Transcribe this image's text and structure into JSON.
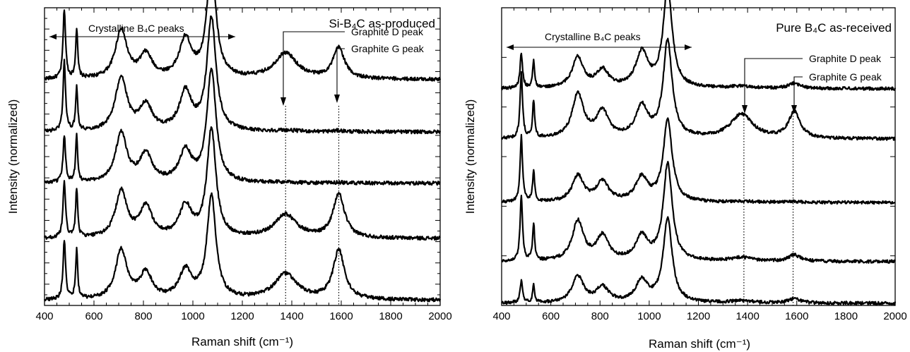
{
  "figure": {
    "panels": [
      {
        "title": "Si-B₄C as-produced",
        "xlabel": "Raman shift (cm⁻¹)",
        "ylabel": "Intensity (normalized)",
        "xticks": [
          "400",
          "600",
          "800",
          "1000",
          "1200",
          "1400",
          "1600",
          "1800",
          "2000"
        ],
        "annotations": {
          "crystalline": "Crystalline B₄C peaks",
          "d_peak": "Graphite D peak",
          "g_peak": "Graphite G peak"
        }
      },
      {
        "title": "Pure B₄C as-received",
        "xlabel": "Raman shift (cm⁻¹)",
        "ylabel": "Intensity (normalized)",
        "xticks": [
          "400",
          "600",
          "800",
          "1000",
          "1200",
          "1400",
          "1600",
          "1800",
          "2000"
        ],
        "annotations": {
          "crystalline": "Crystalline B₄C peaks",
          "d_peak": "Graphite D peak",
          "g_peak": "Graphite G peak"
        }
      }
    ]
  },
  "chart_data": [
    {
      "type": "line",
      "title": "Si-B₄C as-produced",
      "xlabel": "Raman shift (cm⁻¹)",
      "ylabel": "Intensity (normalized)",
      "xlim": [
        400,
        2000
      ],
      "ylim": [
        0,
        5.8
      ],
      "y_tick_labels_shown": false,
      "grid": false,
      "reference_lines_x": [
        1375,
        1590
      ],
      "annotation_arrow_range_x": [
        400,
        1200
      ],
      "series": [
        {
          "offset": 4.4,
          "bands": {
            "b480": 1.35,
            "b530": 0.95,
            "b710": 0.95,
            "b810": 0.45,
            "b970": 0.75,
            "b1075": 2.2,
            "d1375": 0.5,
            "g1590": 0.6
          }
        },
        {
          "offset": 3.38,
          "bands": {
            "b480": 1.35,
            "b530": 0.85,
            "b710": 1.05,
            "b810": 0.5,
            "b970": 0.75,
            "b1075": 2.2,
            "d1375": 0.02,
            "g1590": 0.02
          }
        },
        {
          "offset": 2.38,
          "bands": {
            "b480": 0.9,
            "b530": 0.9,
            "b710": 0.95,
            "b810": 0.55,
            "b970": 0.6,
            "b1075": 2.2,
            "d1375": 0.01,
            "g1590": 0.01
          }
        },
        {
          "offset": 1.3,
          "bands": {
            "b480": 1.1,
            "b530": 0.95,
            "b710": 0.9,
            "b810": 0.6,
            "b970": 0.6,
            "b1075": 2.1,
            "d1375": 0.45,
            "g1590": 0.85
          }
        },
        {
          "offset": 0.1,
          "bands": {
            "b480": 1.15,
            "b530": 0.95,
            "b710": 0.95,
            "b810": 0.5,
            "b970": 0.55,
            "b1075": 2.0,
            "d1375": 0.5,
            "g1590": 0.95
          }
        }
      ]
    },
    {
      "type": "line",
      "title": "Pure B₄C as-received",
      "xlabel": "Raman shift (cm⁻¹)",
      "ylabel": "Intensity (normalized)",
      "xlim": [
        400,
        2000
      ],
      "ylim": [
        0,
        6.8
      ],
      "y_tick_labels_shown": false,
      "grid": false,
      "reference_lines_x": [
        1385,
        1585
      ],
      "annotation_arrow_range_x": [
        400,
        1200
      ],
      "series": [
        {
          "offset": 4.95,
          "bands": {
            "b480": 0.8,
            "b530": 0.6,
            "b710": 0.7,
            "b810": 0.4,
            "b970": 0.8,
            "b1075": 2.3,
            "d1375": 0.05,
            "g1590": 0.12
          }
        },
        {
          "offset": 3.8,
          "bands": {
            "b480": 1.5,
            "b530": 0.85,
            "b710": 1.0,
            "b810": 0.6,
            "b970": 0.7,
            "b1075": 2.2,
            "d1375": 0.55,
            "g1590": 0.6
          }
        },
        {
          "offset": 2.35,
          "bands": {
            "b480": 1.5,
            "b530": 0.7,
            "b710": 0.6,
            "b810": 0.45,
            "b970": 0.55,
            "b1075": 1.85,
            "d1375": 0.02,
            "g1590": 0.02
          }
        },
        {
          "offset": 1.0,
          "bands": {
            "b480": 1.5,
            "b530": 0.85,
            "b710": 0.9,
            "b810": 0.55,
            "b970": 0.55,
            "b1075": 2.2,
            "d1375": 0.08,
            "g1590": 0.15
          }
        },
        {
          "offset": 0.05,
          "bands": {
            "b480": 0.5,
            "b530": 0.4,
            "b710": 0.6,
            "b810": 0.35,
            "b970": 0.5,
            "b1075": 1.9,
            "d1375": 0.05,
            "g1590": 0.1
          }
        }
      ]
    }
  ]
}
